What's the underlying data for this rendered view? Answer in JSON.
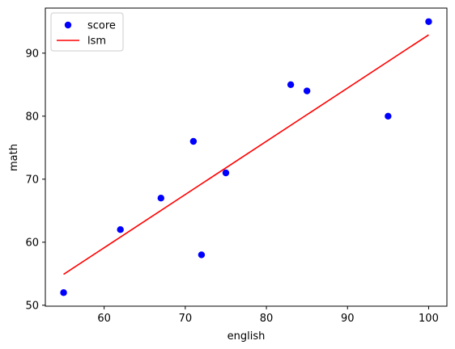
{
  "chart_data": {
    "type": "scatter",
    "xlabel": "english",
    "ylabel": "math",
    "xlim": [
      52.75,
      102.25
    ],
    "ylim": [
      49.85,
      97.15
    ],
    "xticks": [
      60,
      70,
      80,
      90,
      100
    ],
    "yticks": [
      50,
      60,
      70,
      80,
      90
    ],
    "grid": false,
    "legend_position": "top-left",
    "series": [
      {
        "name": "score",
        "kind": "scatter",
        "color": "#0000ff",
        "points": [
          {
            "x": 55,
            "y": 52
          },
          {
            "x": 62,
            "y": 62
          },
          {
            "x": 67,
            "y": 67
          },
          {
            "x": 71,
            "y": 76
          },
          {
            "x": 72,
            "y": 58
          },
          {
            "x": 75,
            "y": 71
          },
          {
            "x": 83,
            "y": 85
          },
          {
            "x": 85,
            "y": 84
          },
          {
            "x": 95,
            "y": 80
          },
          {
            "x": 100,
            "y": 95
          }
        ]
      },
      {
        "name": "lsm",
        "kind": "line",
        "color": "#ff0000",
        "points": [
          {
            "x": 55,
            "y": 54.9
          },
          {
            "x": 100,
            "y": 92.9
          }
        ]
      }
    ]
  }
}
